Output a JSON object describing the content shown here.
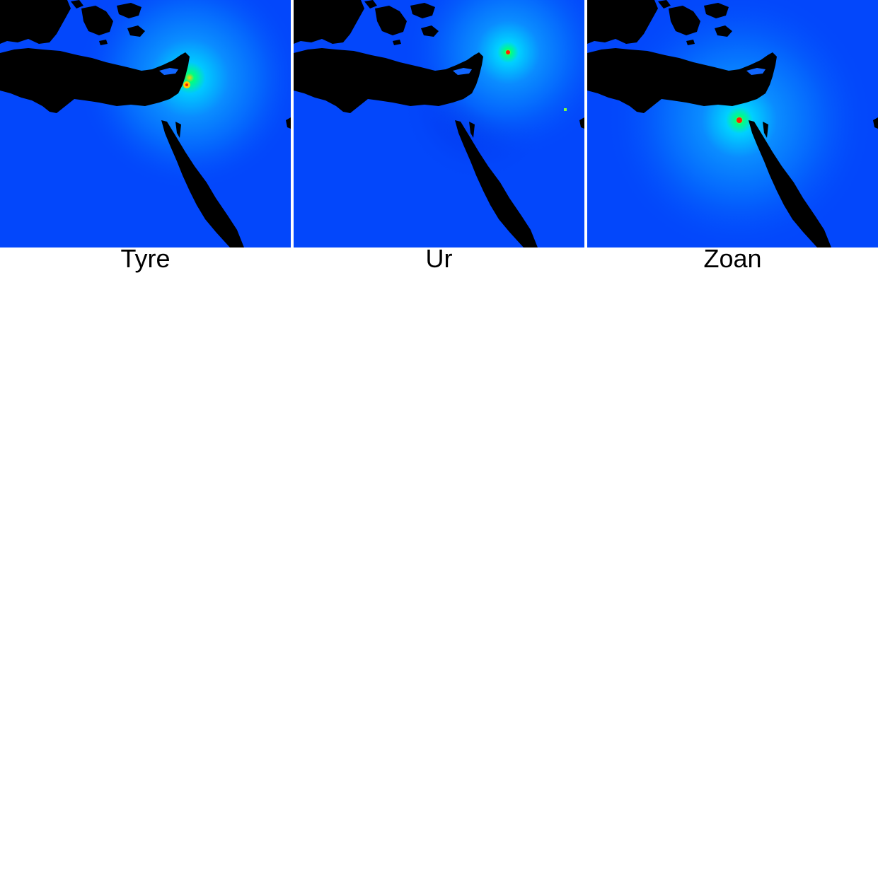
{
  "panels": [
    {
      "label": "Tyre"
    },
    {
      "label": "Ur"
    },
    {
      "label": "Zoan"
    }
  ],
  "colors": {
    "background": "#0347fb",
    "land": "#000000",
    "hotspot_low": "#00b4ff",
    "hotspot_mid": "#00ff80",
    "hotspot_peak": "#ff2000"
  }
}
